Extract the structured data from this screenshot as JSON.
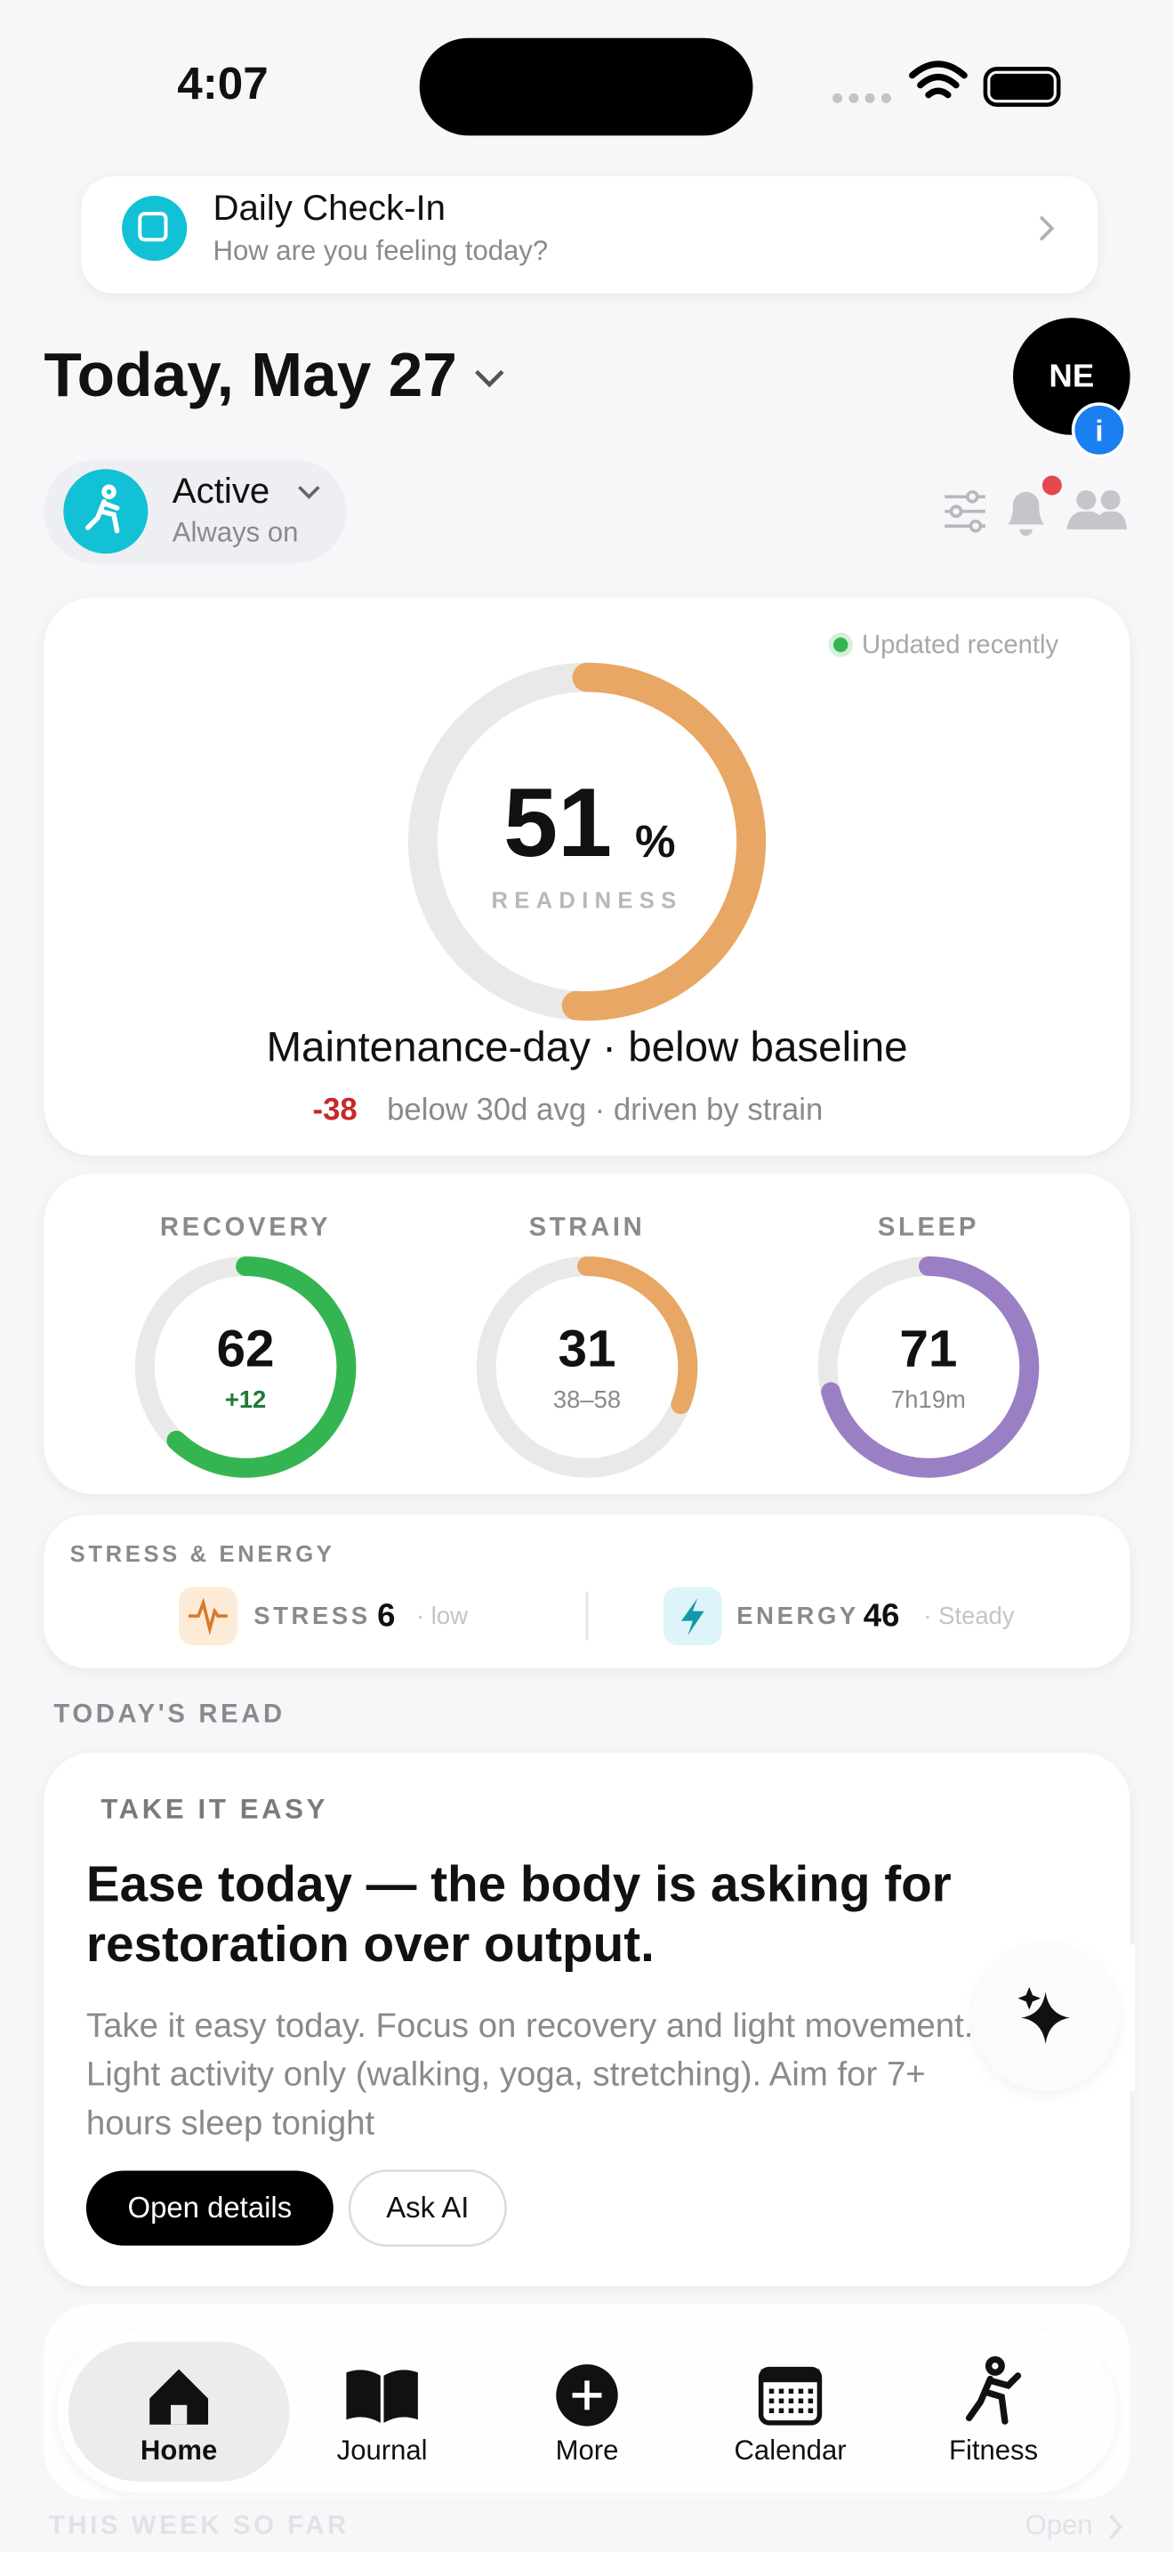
{
  "status_bar": {
    "time": "4:07"
  },
  "check_in": {
    "title": "Daily Check-In",
    "subtitle": "How are you feeling today?"
  },
  "header": {
    "date": "Today, May 27",
    "avatar": "NE",
    "badge": "i"
  },
  "mode": {
    "title": "Active",
    "subtitle": "Always on"
  },
  "readiness": {
    "status": "Updated recently",
    "value": 51,
    "unit": "%",
    "label": "READINESS",
    "headline": "Maintenance-day · below baseline",
    "delta": "-38",
    "delta_text": "below 30d avg · driven by strain",
    "ring_range": [
      0,
      100
    ]
  },
  "metrics": [
    {
      "label": "RECOVERY",
      "value": 62,
      "sub": "+12",
      "color": "#35b552"
    },
    {
      "label": "STRAIN",
      "value": 31,
      "sub": "38–58",
      "color": "#e8a764"
    },
    {
      "label": "SLEEP",
      "value": 71,
      "sub": "7h19m",
      "color": "#9b7fc4"
    }
  ],
  "stress_energy": {
    "title": "STRESS & ENERGY",
    "stress": {
      "label": "STRESS",
      "value": 6,
      "note": "· low"
    },
    "energy": {
      "label": "ENERGY",
      "value": 46,
      "note": "· Steady"
    }
  },
  "todays_read": {
    "section": "TODAY'S READ",
    "tag": "TAKE IT EASY",
    "headline": [
      "Ease today — the body is asking for",
      "restoration over output."
    ],
    "body": [
      "Take it easy today. Focus on recovery and light movement.",
      "Light activity only (walking, yoga, stretching). Aim for 7+",
      "hours sleep tonight"
    ],
    "buttons": [
      "Open details",
      "Ask AI"
    ]
  },
  "tabs": [
    "Home",
    "Journal",
    "More",
    "Calendar",
    "Fitness"
  ],
  "footer": {
    "section": "THIS WEEK SO FAR",
    "link": "Open"
  }
}
